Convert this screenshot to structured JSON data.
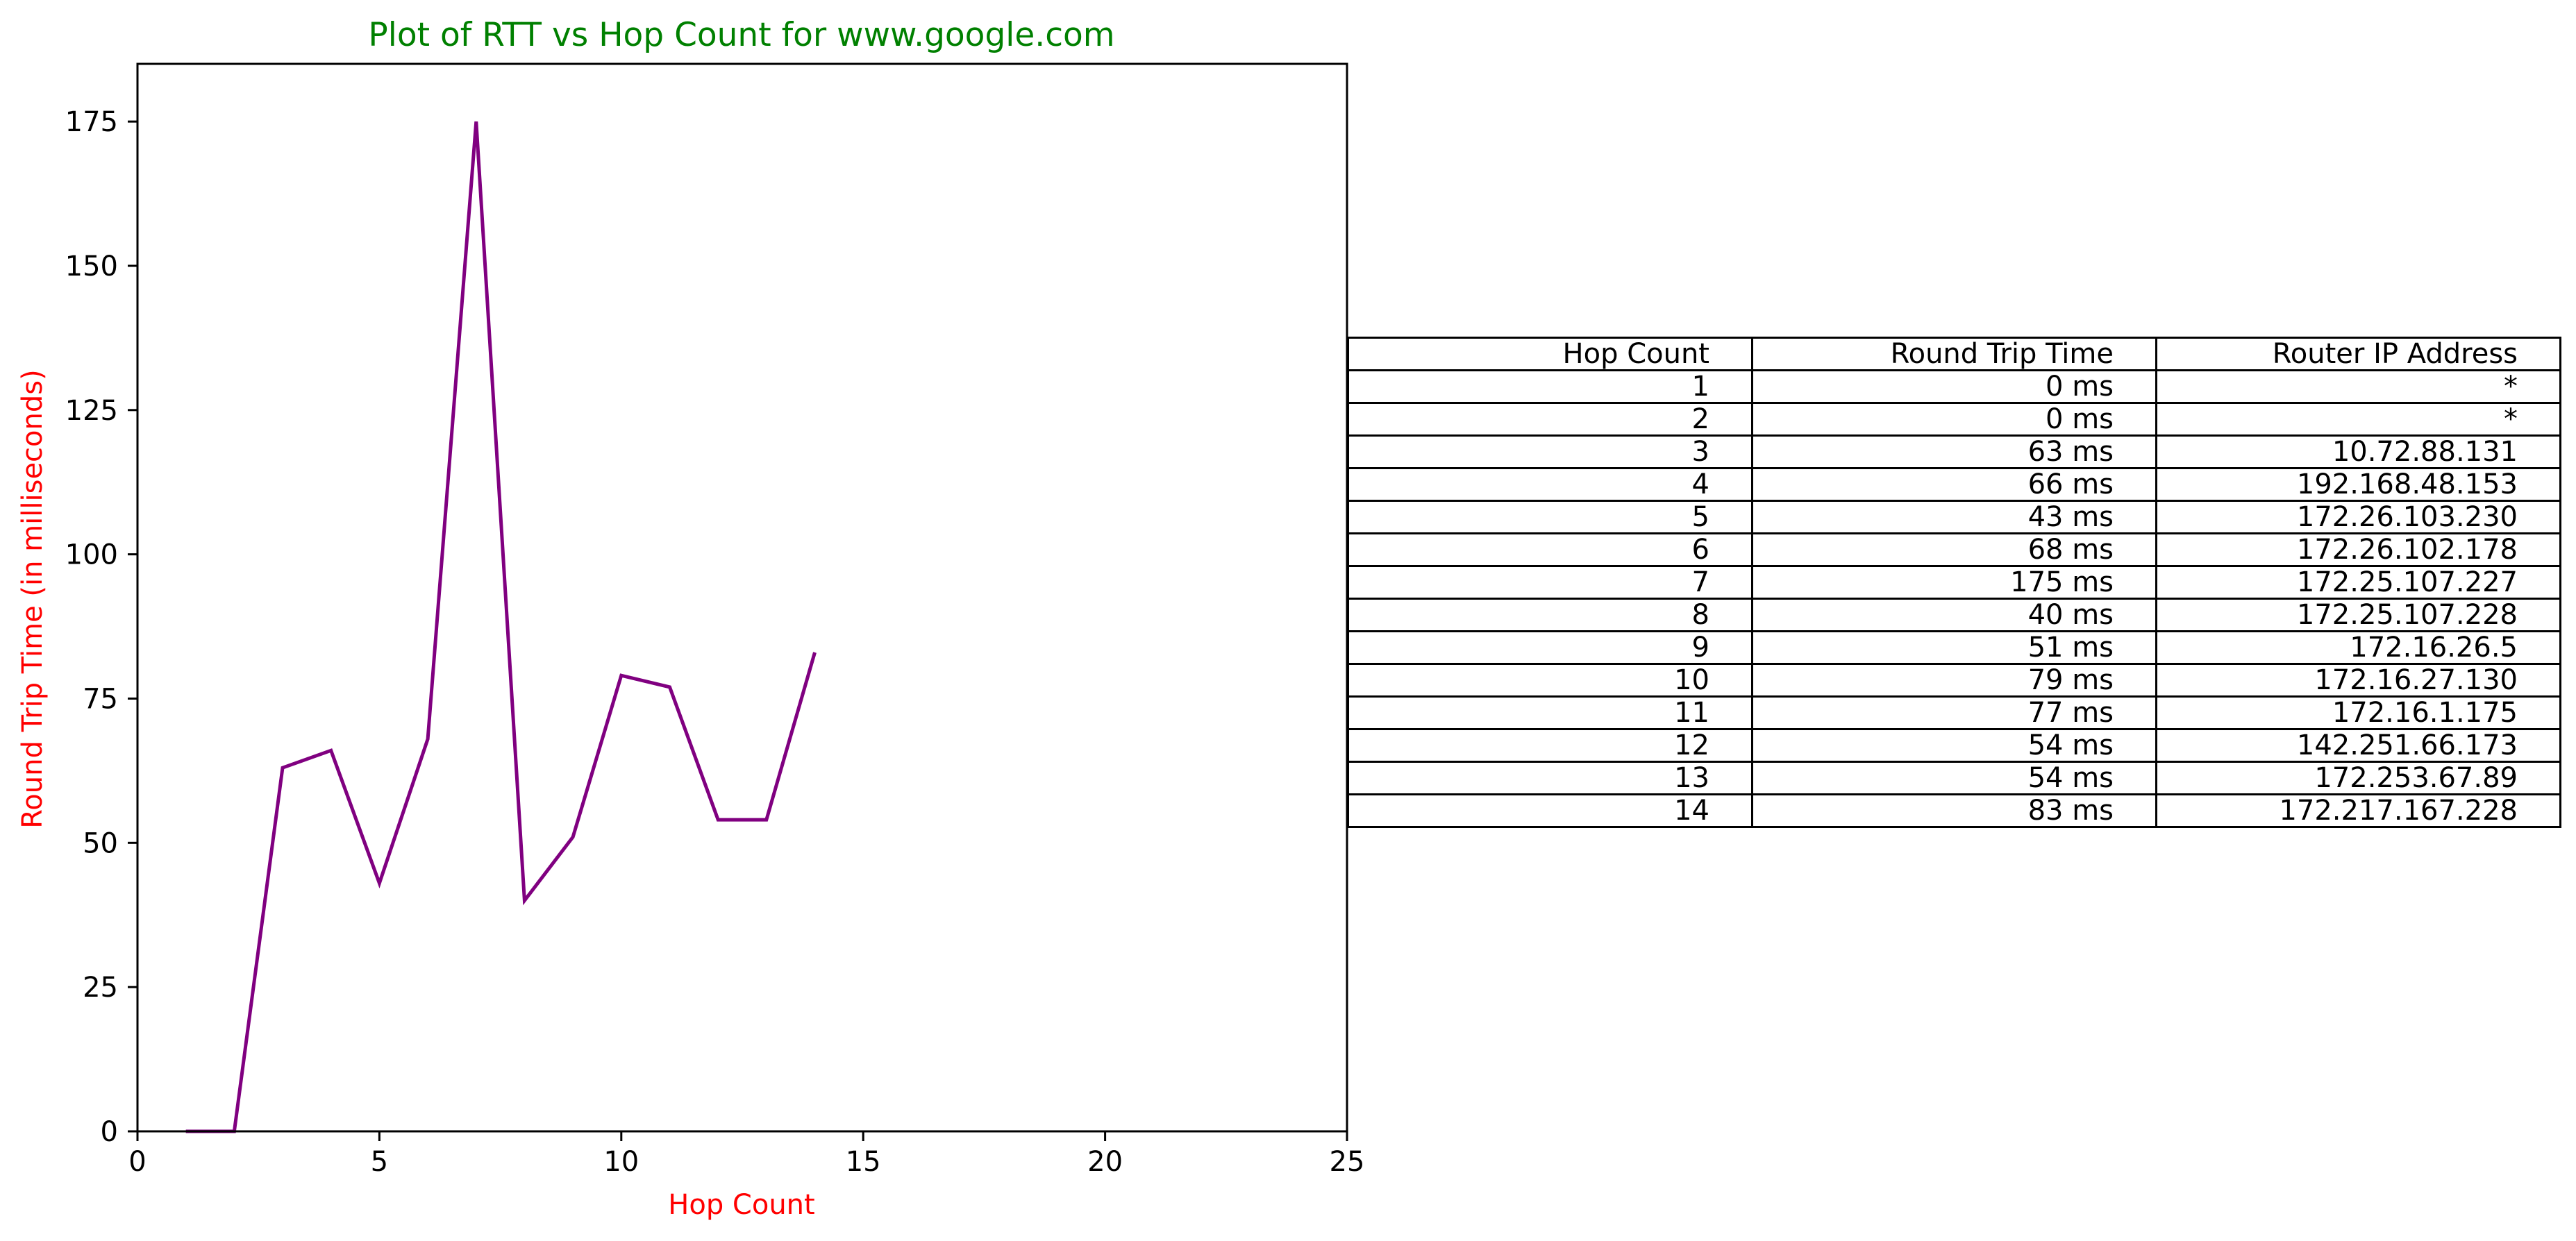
{
  "chart_data": {
    "type": "line",
    "title": "Plot of RTT vs Hop Count for www.google.com",
    "xlabel": "Hop Count",
    "ylabel": "Round Trip Time (in milliseconds)",
    "xlim": [
      0,
      25
    ],
    "ylim": [
      0,
      185
    ],
    "xticks": [
      0,
      5,
      10,
      15,
      20,
      25
    ],
    "yticks": [
      0,
      25,
      50,
      75,
      100,
      125,
      150,
      175
    ],
    "grid": false,
    "series": [
      {
        "x": [
          1,
          2,
          3,
          4,
          5,
          6,
          7,
          8,
          9,
          10,
          11,
          12,
          13,
          14
        ],
        "values": [
          0,
          0,
          63,
          66,
          43,
          68,
          175,
          40,
          51,
          79,
          77,
          54,
          54,
          83
        ],
        "color": "#800080"
      }
    ],
    "colors": {
      "title": "#008000",
      "axis_labels": "#ff0000",
      "line": "#800080"
    }
  },
  "table": {
    "headers": [
      "Hop Count",
      "Round Trip Time",
      "Router IP Address"
    ],
    "rows": [
      [
        "1",
        "0 ms",
        "*"
      ],
      [
        "2",
        "0 ms",
        "*"
      ],
      [
        "3",
        "63 ms",
        "10.72.88.131"
      ],
      [
        "4",
        "66 ms",
        "192.168.48.153"
      ],
      [
        "5",
        "43 ms",
        "172.26.103.230"
      ],
      [
        "6",
        "68 ms",
        "172.26.102.178"
      ],
      [
        "7",
        "175 ms",
        "172.25.107.227"
      ],
      [
        "8",
        "40 ms",
        "172.25.107.228"
      ],
      [
        "9",
        "51 ms",
        "172.16.26.5"
      ],
      [
        "10",
        "79 ms",
        "172.16.27.130"
      ],
      [
        "11",
        "77 ms",
        "172.16.1.175"
      ],
      [
        "12",
        "54 ms",
        "142.251.66.173"
      ],
      [
        "13",
        "54 ms",
        "172.253.67.89"
      ],
      [
        "14",
        "83 ms",
        "172.217.167.228"
      ]
    ]
  }
}
